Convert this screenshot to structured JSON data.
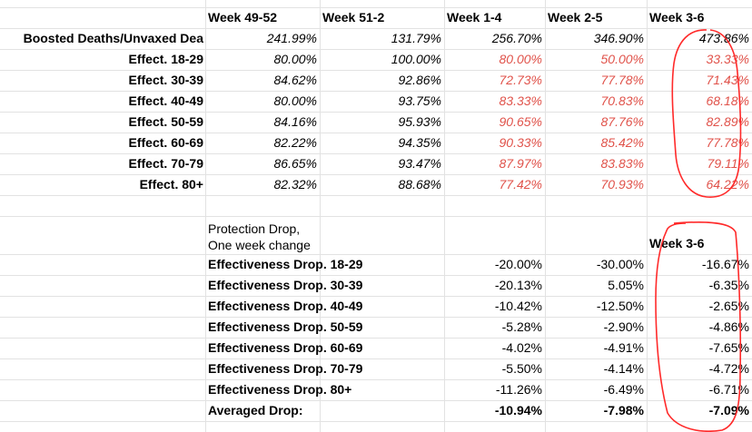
{
  "headers": [
    "Week 49-52",
    "Week 51-2",
    "Week 1-4",
    "Week 2-5",
    "Week 3-6"
  ],
  "top_rows": [
    {
      "label": "Boosted Deaths/Unvaxed Dea",
      "values": [
        "241.99%",
        "131.79%",
        "256.70%",
        "346.90%",
        "473.86%"
      ],
      "red_cols": []
    },
    {
      "label": "Effect. 18-29",
      "values": [
        "80.00%",
        "100.00%",
        "80.00%",
        "50.00%",
        "33.33%"
      ],
      "red_cols": [
        2,
        3,
        4
      ]
    },
    {
      "label": "Effect. 30-39",
      "values": [
        "84.62%",
        "92.86%",
        "72.73%",
        "77.78%",
        "71.43%"
      ],
      "red_cols": [
        2,
        3,
        4
      ]
    },
    {
      "label": "Effect. 40-49",
      "values": [
        "80.00%",
        "93.75%",
        "83.33%",
        "70.83%",
        "68.18%"
      ],
      "red_cols": [
        2,
        3,
        4
      ]
    },
    {
      "label": "Effect. 50-59",
      "values": [
        "84.16%",
        "95.93%",
        "90.65%",
        "87.76%",
        "82.89%"
      ],
      "red_cols": [
        2,
        3,
        4
      ]
    },
    {
      "label": "Effect. 60-69",
      "values": [
        "82.22%",
        "94.35%",
        "90.33%",
        "85.42%",
        "77.78%"
      ],
      "red_cols": [
        2,
        3,
        4
      ]
    },
    {
      "label": "Effect. 70-79",
      "values": [
        "86.65%",
        "93.47%",
        "87.97%",
        "83.83%",
        "79.11%"
      ],
      "red_cols": [
        2,
        3,
        4
      ]
    },
    {
      "label": "Effect. 80+",
      "values": [
        "82.32%",
        "88.68%",
        "77.42%",
        "70.93%",
        "64.22%"
      ],
      "red_cols": [
        2,
        3,
        4
      ]
    }
  ],
  "protection_note": {
    "line1": "Protection Drop,",
    "line2": "One week change"
  },
  "bottom_header": "Week 3-6",
  "bottom_rows": [
    {
      "label": "Effectiveness Drop. 18-29",
      "values": [
        "-20.00%",
        "-30.00%",
        "-16.67%"
      ]
    },
    {
      "label": "Effectiveness Drop. 30-39",
      "values": [
        "-20.13%",
        "5.05%",
        "-6.35%"
      ]
    },
    {
      "label": "Effectiveness Drop. 40-49",
      "values": [
        "-10.42%",
        "-12.50%",
        "-2.65%"
      ]
    },
    {
      "label": "Effectiveness Drop. 50-59",
      "values": [
        "-5.28%",
        "-2.90%",
        "-4.86%"
      ]
    },
    {
      "label": "Effectiveness Drop. 60-69",
      "values": [
        "-4.02%",
        "-4.91%",
        "-7.65%"
      ]
    },
    {
      "label": "Effectiveness Drop. 70-79",
      "values": [
        "-5.50%",
        "-4.14%",
        "-4.72%"
      ]
    },
    {
      "label": "Effectiveness Drop. 80+",
      "values": [
        "-11.26%",
        "-6.49%",
        "-6.71%"
      ]
    }
  ],
  "averaged_row": {
    "label": "Averaged Drop:",
    "values": [
      "-10.94%",
      "-7.98%",
      "-7.09%"
    ]
  },
  "colors": {
    "grid": "#e2e2e2",
    "red_text": "#e0524a",
    "annotation": "#ff2a2a"
  }
}
